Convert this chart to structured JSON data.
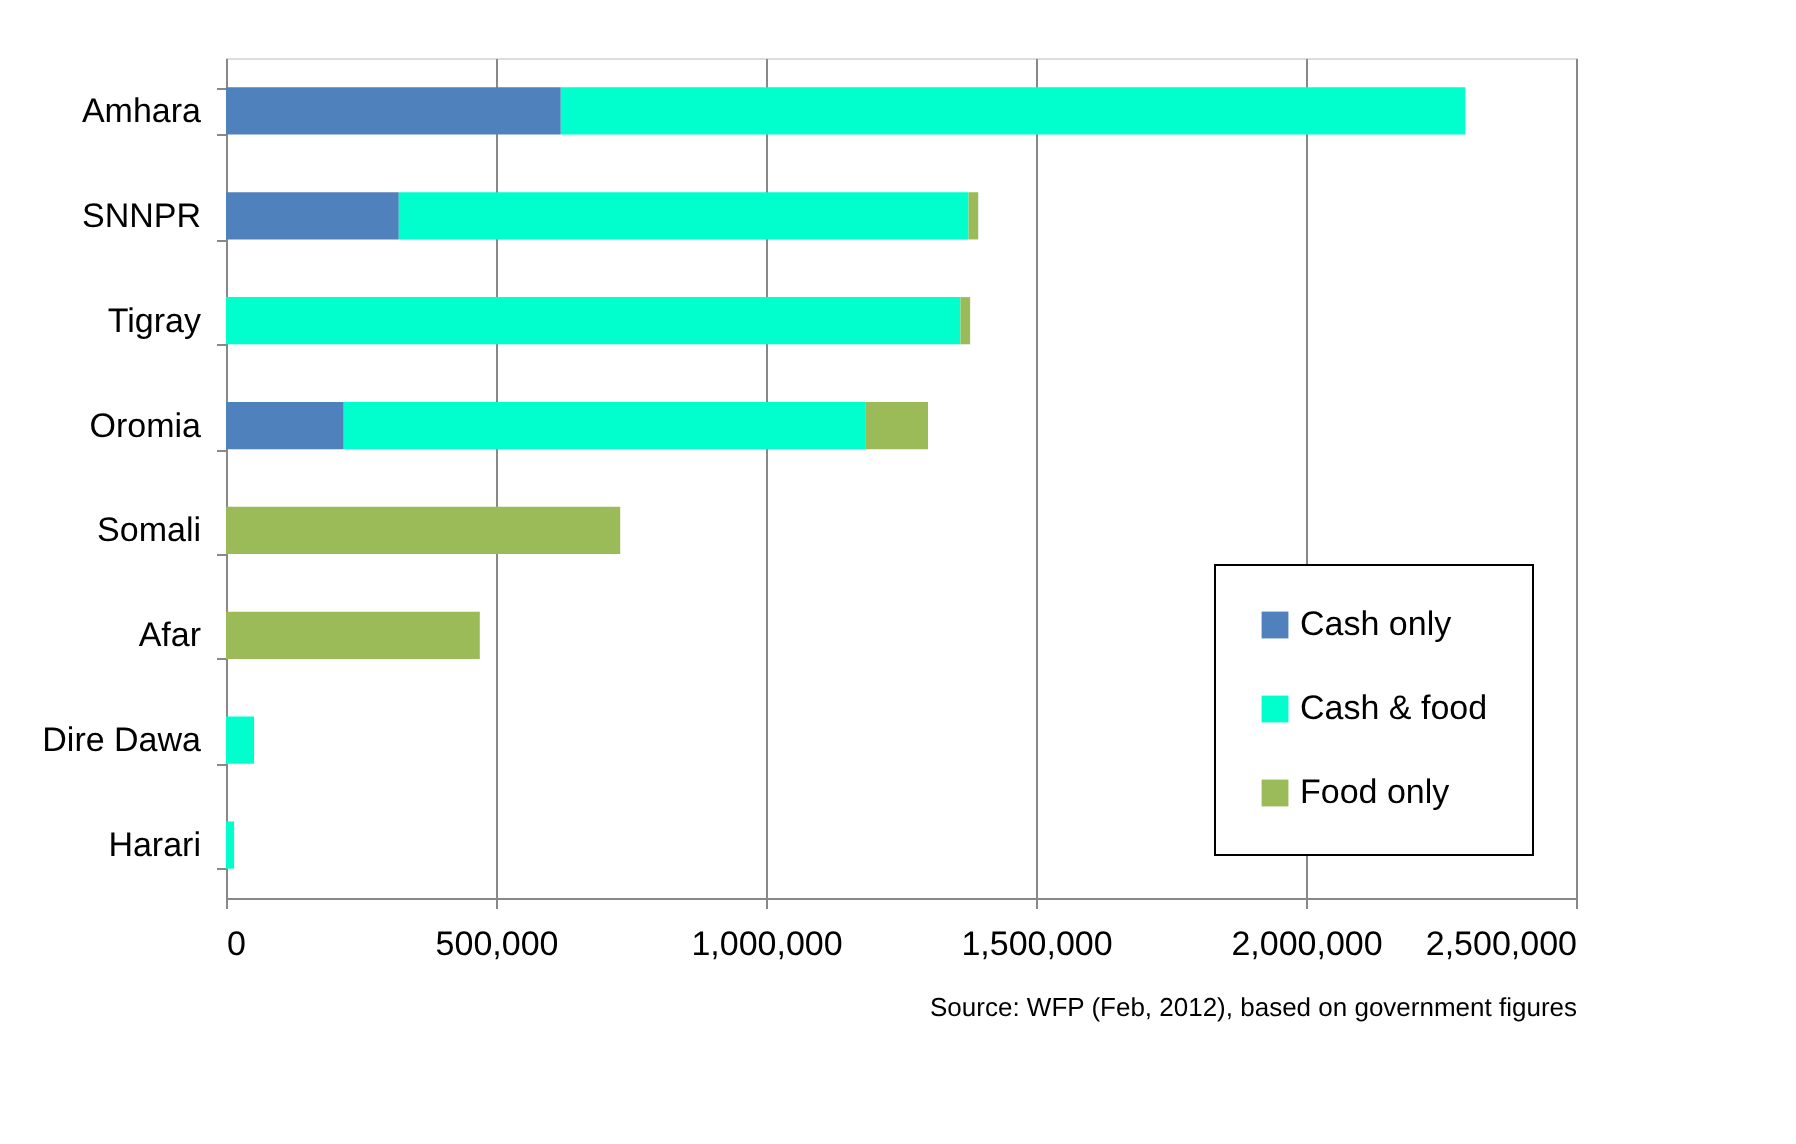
{
  "chart_data": {
    "type": "bar",
    "orientation": "horizontal",
    "stacked": true,
    "categories": [
      "Amhara",
      "SNNPR",
      "Tigray",
      "Oromia",
      "Somali",
      "Afar",
      "Dire Dawa",
      "Harari"
    ],
    "series": [
      {
        "name": "Cash only",
        "color": "#4f81bd",
        "values": [
          620000,
          320000,
          null,
          218000,
          null,
          null,
          null,
          null
        ]
      },
      {
        "name": "Cash & food",
        "color": "#00ffcc",
        "values": [
          1675000,
          1055000,
          1360000,
          967000,
          null,
          null,
          52000,
          15000
        ]
      },
      {
        "name": "Food only",
        "color": "#9bbb59",
        "values": [
          null,
          18000,
          18000,
          115000,
          730000,
          470000,
          null,
          null
        ]
      }
    ],
    "xlim": [
      0,
      2500000
    ],
    "xticks": [
      {
        "value": 0,
        "label": "0"
      },
      {
        "value": 500000,
        "label": "500,000"
      },
      {
        "value": 1000000,
        "label": "1,000,000"
      },
      {
        "value": 1500000,
        "label": "1,500,000"
      },
      {
        "value": 2000000,
        "label": "2,000,000"
      },
      {
        "value": 2500000,
        "label": "2,500,000"
      }
    ],
    "grid": "x",
    "legend": "bottom right",
    "annotations": [
      "Source: WFP (Feb, 2012), based on government figures"
    ]
  }
}
